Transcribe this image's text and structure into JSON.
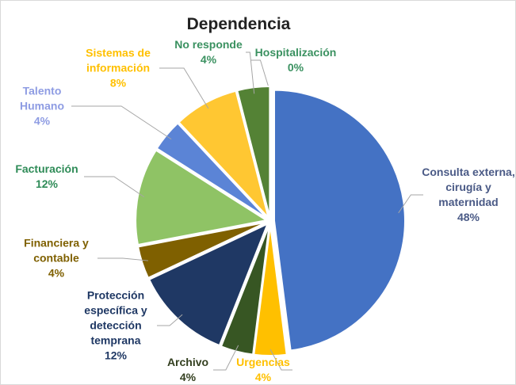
{
  "chart_data": {
    "type": "pie",
    "title": "Dependencia",
    "categories": [
      "Hospitalización",
      "Consulta externa, cirugía y maternidad",
      "Urgencias",
      "Archivo",
      "Protección específica y detección temprana",
      "Financiera y contable",
      "Facturación",
      "Talento Humano",
      "Sistemas de información",
      "No responde"
    ],
    "values": [
      0,
      48,
      4,
      4,
      12,
      4,
      12,
      4,
      8,
      4
    ],
    "value_labels": [
      "0%",
      "48%",
      "4%",
      "4%",
      "12%",
      "4%",
      "12%",
      "4%",
      "8%",
      "4%"
    ],
    "colors": [
      "#70ad47",
      "#4472c4",
      "#ffc000",
      "#375623",
      "#1f3864",
      "#7f6000",
      "#8fc365",
      "#5b84d6",
      "#ffc732",
      "#548235"
    ],
    "label_colors": [
      "#3a9160",
      "#4a5a86",
      "#ffc000",
      "#333f1f",
      "#1f3864",
      "#7f6000",
      "#2e8b57",
      "#8e9ce3",
      "#ffc000",
      "#3a9160"
    ]
  }
}
